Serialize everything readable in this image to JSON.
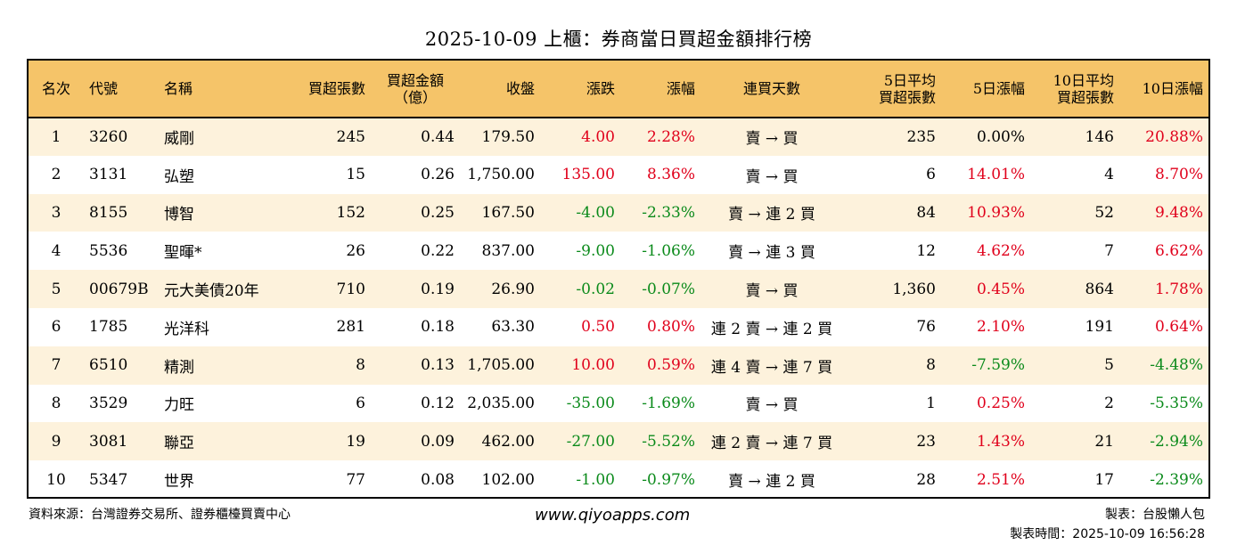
{
  "title": "2025-10-09 上櫃：券商當日買超金額排行榜",
  "colors": {
    "header_bg": "#f5c469",
    "row_alt_bg": "#fdf2dc",
    "up": "#e0001b",
    "down": "#0a8a1a"
  },
  "headers": {
    "rank": "名次",
    "code": "代號",
    "name": "名稱",
    "buy_lots": "買超張數",
    "amount_line1": "買超金額",
    "amount_line2": "（億）",
    "close": "收盤",
    "change": "漲跌",
    "pct": "漲幅",
    "days": "連買天數",
    "avg5_line1": "5日平均",
    "avg5_line2": "買超張數",
    "pct5": "5日漲幅",
    "avg10_line1": "10日平均",
    "avg10_line2": "買超張數",
    "pct10": "10日漲幅"
  },
  "rows": [
    {
      "rank": "1",
      "code": "3260",
      "name": "威剛",
      "buy_lots": "245",
      "amount": "0.44",
      "close": "179.50",
      "change": "4.00",
      "pct": "2.28%",
      "days": "賣 → 買",
      "avg5": "235",
      "pct5": "0.00%",
      "avg10": "146",
      "pct10": "20.88%",
      "chg_dir": "up",
      "pct_dir": "up",
      "pct5_dir": "flat",
      "pct10_dir": "up"
    },
    {
      "rank": "2",
      "code": "3131",
      "name": "弘塑",
      "buy_lots": "15",
      "amount": "0.26",
      "close": "1,750.00",
      "change": "135.00",
      "pct": "8.36%",
      "days": "賣 → 買",
      "avg5": "6",
      "pct5": "14.01%",
      "avg10": "4",
      "pct10": "8.70%",
      "chg_dir": "up",
      "pct_dir": "up",
      "pct5_dir": "up",
      "pct10_dir": "up"
    },
    {
      "rank": "3",
      "code": "8155",
      "name": "博智",
      "buy_lots": "152",
      "amount": "0.25",
      "close": "167.50",
      "change": "-4.00",
      "pct": "-2.33%",
      "days": "賣 → 連 2 買",
      "avg5": "84",
      "pct5": "10.93%",
      "avg10": "52",
      "pct10": "9.48%",
      "chg_dir": "down",
      "pct_dir": "down",
      "pct5_dir": "up",
      "pct10_dir": "up"
    },
    {
      "rank": "4",
      "code": "5536",
      "name": "聖暉*",
      "buy_lots": "26",
      "amount": "0.22",
      "close": "837.00",
      "change": "-9.00",
      "pct": "-1.06%",
      "days": "賣 → 連 3 買",
      "avg5": "12",
      "pct5": "4.62%",
      "avg10": "7",
      "pct10": "6.62%",
      "chg_dir": "down",
      "pct_dir": "down",
      "pct5_dir": "up",
      "pct10_dir": "up"
    },
    {
      "rank": "5",
      "code": "00679B",
      "name": "元大美債20年",
      "buy_lots": "710",
      "amount": "0.19",
      "close": "26.90",
      "change": "-0.02",
      "pct": "-0.07%",
      "days": "賣 → 買",
      "avg5": "1,360",
      "pct5": "0.45%",
      "avg10": "864",
      "pct10": "1.78%",
      "chg_dir": "down",
      "pct_dir": "down",
      "pct5_dir": "up",
      "pct10_dir": "up"
    },
    {
      "rank": "6",
      "code": "1785",
      "name": "光洋科",
      "buy_lots": "281",
      "amount": "0.18",
      "close": "63.30",
      "change": "0.50",
      "pct": "0.80%",
      "days": "連 2 賣 → 連 2 買",
      "avg5": "76",
      "pct5": "2.10%",
      "avg10": "191",
      "pct10": "0.64%",
      "chg_dir": "up",
      "pct_dir": "up",
      "pct5_dir": "up",
      "pct10_dir": "up"
    },
    {
      "rank": "7",
      "code": "6510",
      "name": "精測",
      "buy_lots": "8",
      "amount": "0.13",
      "close": "1,705.00",
      "change": "10.00",
      "pct": "0.59%",
      "days": "連 4 賣 → 連 7 買",
      "avg5": "8",
      "pct5": "-7.59%",
      "avg10": "5",
      "pct10": "-4.48%",
      "chg_dir": "up",
      "pct_dir": "up",
      "pct5_dir": "down",
      "pct10_dir": "down"
    },
    {
      "rank": "8",
      "code": "3529",
      "name": "力旺",
      "buy_lots": "6",
      "amount": "0.12",
      "close": "2,035.00",
      "change": "-35.00",
      "pct": "-1.69%",
      "days": "賣 → 買",
      "avg5": "1",
      "pct5": "0.25%",
      "avg10": "2",
      "pct10": "-5.35%",
      "chg_dir": "down",
      "pct_dir": "down",
      "pct5_dir": "up",
      "pct10_dir": "down"
    },
    {
      "rank": "9",
      "code": "3081",
      "name": "聯亞",
      "buy_lots": "19",
      "amount": "0.09",
      "close": "462.00",
      "change": "-27.00",
      "pct": "-5.52%",
      "days": "連 2 賣 → 連 7 買",
      "avg5": "23",
      "pct5": "1.43%",
      "avg10": "21",
      "pct10": "-2.94%",
      "chg_dir": "down",
      "pct_dir": "down",
      "pct5_dir": "up",
      "pct10_dir": "down"
    },
    {
      "rank": "10",
      "code": "5347",
      "name": "世界",
      "buy_lots": "77",
      "amount": "0.08",
      "close": "102.00",
      "change": "-1.00",
      "pct": "-0.97%",
      "days": "賣 → 連 2 買",
      "avg5": "28",
      "pct5": "2.51%",
      "avg10": "17",
      "pct10": "-2.39%",
      "chg_dir": "down",
      "pct_dir": "down",
      "pct5_dir": "up",
      "pct10_dir": "down"
    }
  ],
  "footer": {
    "source": "資料來源：台灣證券交易所、證券櫃檯買賣中心",
    "site": "www.qiyoapps.com",
    "maker": "製表：台股懶人包",
    "time": "製表時間：2025-10-09 16:56:28"
  }
}
